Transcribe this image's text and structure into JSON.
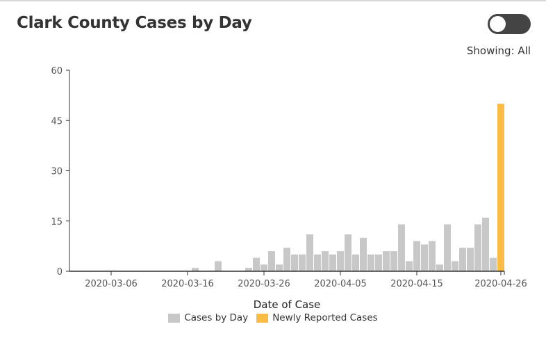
{
  "header": {
    "title": "Clark County Cases by Day",
    "toggle_on": false,
    "showing_text": "Showing: All"
  },
  "chart_data": {
    "type": "bar",
    "title": "Clark County Cases by Day",
    "xlabel": "Date of Case",
    "ylabel": "",
    "ylim": [
      0,
      60
    ],
    "yticks": [
      0,
      15,
      30,
      45,
      60
    ],
    "xlim": [
      "2020-03-01",
      "2020-04-26"
    ],
    "xticks": [
      "2020-03-06",
      "2020-03-16",
      "2020-03-26",
      "2020-04-05",
      "2020-04-15",
      "2020-04-26"
    ],
    "grid": false,
    "legend_placement": "bottom",
    "colors": {
      "Cases by Day": "#c8c8c8",
      "Newly Reported Cases": "#fbbc45"
    },
    "series": [
      {
        "name": "Cases by Day",
        "points": [
          [
            "2020-03-17",
            1
          ],
          [
            "2020-03-20",
            3
          ],
          [
            "2020-03-24",
            1
          ],
          [
            "2020-03-25",
            4
          ],
          [
            "2020-03-26",
            2
          ],
          [
            "2020-03-27",
            6
          ],
          [
            "2020-03-28",
            2
          ],
          [
            "2020-03-29",
            7
          ],
          [
            "2020-03-30",
            5
          ],
          [
            "2020-03-31",
            5
          ],
          [
            "2020-04-01",
            11
          ],
          [
            "2020-04-02",
            5
          ],
          [
            "2020-04-03",
            6
          ],
          [
            "2020-04-04",
            5
          ],
          [
            "2020-04-05",
            6
          ],
          [
            "2020-04-06",
            11
          ],
          [
            "2020-04-07",
            5
          ],
          [
            "2020-04-08",
            10
          ],
          [
            "2020-04-09",
            5
          ],
          [
            "2020-04-10",
            5
          ],
          [
            "2020-04-11",
            6
          ],
          [
            "2020-04-12",
            6
          ],
          [
            "2020-04-13",
            14
          ],
          [
            "2020-04-14",
            3
          ],
          [
            "2020-04-15",
            9
          ],
          [
            "2020-04-16",
            8
          ],
          [
            "2020-04-17",
            9
          ],
          [
            "2020-04-18",
            2
          ],
          [
            "2020-04-19",
            14
          ],
          [
            "2020-04-20",
            3
          ],
          [
            "2020-04-21",
            7
          ],
          [
            "2020-04-22",
            7
          ],
          [
            "2020-04-23",
            14
          ],
          [
            "2020-04-24",
            16
          ],
          [
            "2020-04-25",
            4
          ]
        ]
      },
      {
        "name": "Newly Reported Cases",
        "points": [
          [
            "2020-04-26",
            50
          ]
        ]
      }
    ]
  }
}
